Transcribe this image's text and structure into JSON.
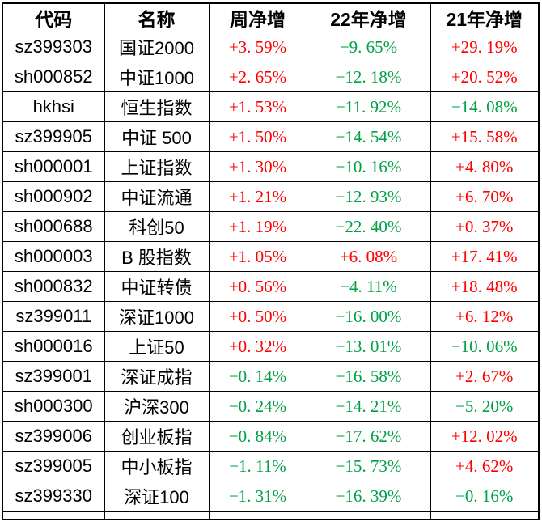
{
  "colors": {
    "positive": "#fe0000",
    "negative": "#00a045",
    "border": "#000000",
    "background": "#ffffff",
    "header_text": "#000000"
  },
  "chart_data": {
    "type": "table",
    "title": "",
    "columns": [
      "代码",
      "名称",
      "周净增",
      "22年净增",
      "21年净增"
    ],
    "rows": [
      {
        "code": "sz399303",
        "name": "国证2000",
        "week": "+3.59%",
        "y22": "-9.65%",
        "y21": "+29.19%"
      },
      {
        "code": "sh000852",
        "name": "中证1000",
        "week": "+2.65%",
        "y22": "-12.18%",
        "y21": "+20.52%"
      },
      {
        "code": "hkhsi",
        "name": "恒生指数",
        "week": "+1.53%",
        "y22": "-11.92%",
        "y21": "-14.08%"
      },
      {
        "code": "sz399905",
        "name": "中证 500",
        "week": "+1.50%",
        "y22": "-14.54%",
        "y21": "+15.58%"
      },
      {
        "code": "sh000001",
        "name": "上证指数",
        "week": "+1.30%",
        "y22": "-10.16%",
        "y21": "+4.80%"
      },
      {
        "code": "sh000902",
        "name": "中证流通",
        "week": "+1.21%",
        "y22": "-12.93%",
        "y21": "+6.70%"
      },
      {
        "code": "sh000688",
        "name": "科创50",
        "week": "+1.19%",
        "y22": "-22.40%",
        "y21": "+0.37%"
      },
      {
        "code": "sh000003",
        "name": "B 股指数",
        "week": "+1.05%",
        "y22": "+6.08%",
        "y21": "+17.41%"
      },
      {
        "code": "sh000832",
        "name": "中证转债",
        "week": "+0.56%",
        "y22": "-4.11%",
        "y21": "+18.48%"
      },
      {
        "code": "sz399011",
        "name": "深证1000",
        "week": "+0.50%",
        "y22": "-16.00%",
        "y21": "+6.12%"
      },
      {
        "code": "sh000016",
        "name": "上证50",
        "week": "+0.32%",
        "y22": "-13.01%",
        "y21": "-10.06%"
      },
      {
        "code": "sz399001",
        "name": "深证成指",
        "week": "-0.14%",
        "y22": "-16.58%",
        "y21": "+2.67%"
      },
      {
        "code": "sh000300",
        "name": "沪深300",
        "week": "-0.24%",
        "y22": "-14.21%",
        "y21": "-5.20%"
      },
      {
        "code": "sz399006",
        "name": "创业板指",
        "week": "-0.84%",
        "y22": "-17.62%",
        "y21": "+12.02%"
      },
      {
        "code": "sz399005",
        "name": "中小板指",
        "week": "-1.11%",
        "y22": "-15.73%",
        "y21": "+4.62%"
      },
      {
        "code": "sz399330",
        "name": "深证100",
        "week": "-1.31%",
        "y22": "-16.39%",
        "y21": "-0.16%"
      }
    ]
  }
}
